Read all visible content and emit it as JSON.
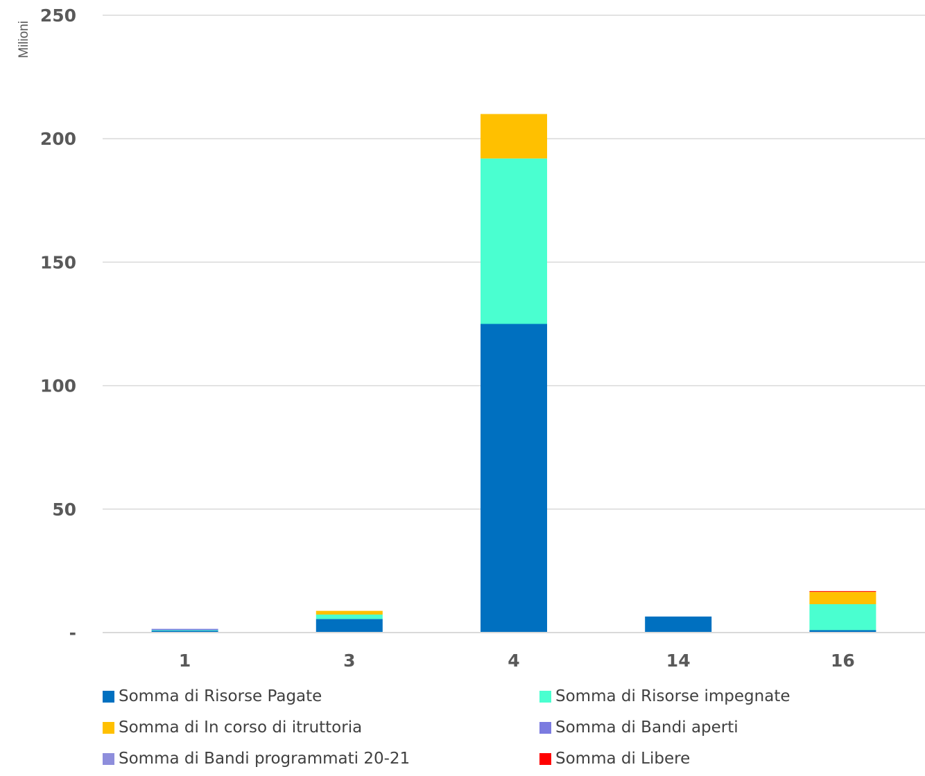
{
  "chart_data": {
    "type": "bar",
    "stacked": true,
    "ylabel": "Milioni",
    "ylim": [
      0,
      250
    ],
    "yticks": [
      0,
      50,
      100,
      150,
      200,
      250
    ],
    "ytick_labels": [
      "-",
      "50",
      "100",
      "150",
      "200",
      "250"
    ],
    "grid": true,
    "legend_position": "bottom",
    "categories": [
      "1",
      "3",
      "4",
      "14",
      "16"
    ],
    "series": [
      {
        "name": "Somma di Risorse Pagate",
        "color": "#0070C0",
        "values": [
          0.8,
          5.5,
          125,
          6.5,
          1.0
        ]
      },
      {
        "name": "Somma di Risorse impegnate",
        "color": "#4AFFD0",
        "values": [
          0.2,
          1.8,
          67,
          0,
          10.5
        ]
      },
      {
        "name": "Somma di In corso di itruttoria",
        "color": "#FFC000",
        "values": [
          0,
          1.5,
          18,
          0,
          5.0
        ]
      },
      {
        "name": "Somma di Bandi aperti",
        "color": "#7B7BE0",
        "values": [
          0.5,
          0,
          0,
          0,
          0
        ]
      },
      {
        "name": "Somma di Bandi programmati 20-21",
        "color": "#8E8EDC",
        "values": [
          0,
          0,
          0,
          0,
          0
        ]
      },
      {
        "name": "Somma di Libere",
        "color": "#FF0000",
        "values": [
          0,
          0,
          0,
          0,
          0.3
        ]
      }
    ]
  }
}
